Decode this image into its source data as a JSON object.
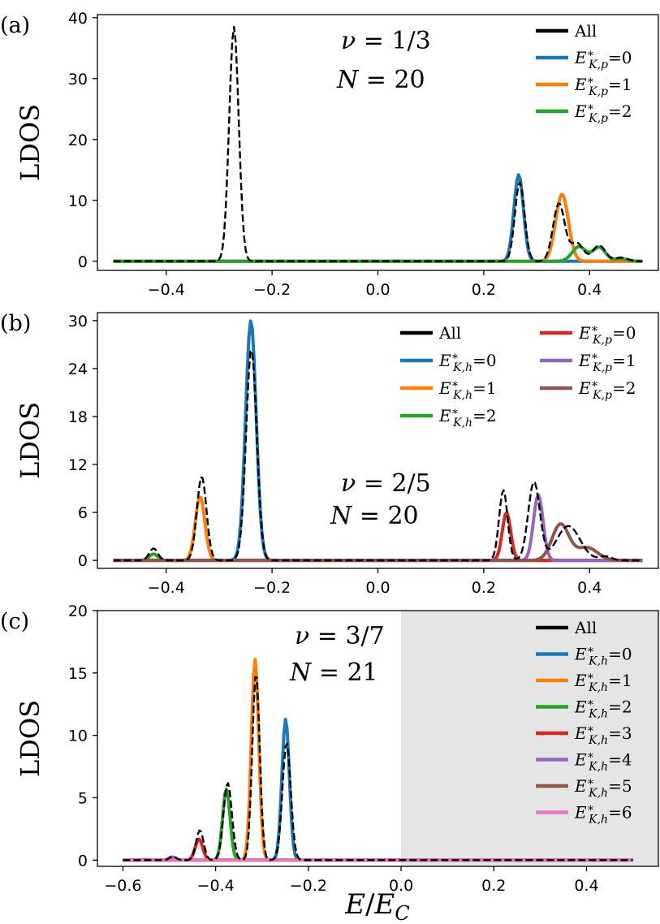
{
  "figure": {
    "xlabel": "E/E_C"
  },
  "chart_data": [
    {
      "type": "line",
      "panel_label": "(a)",
      "annotation": [
        "ν = 1/3",
        "N = 20"
      ],
      "xlabel": "",
      "ylabel": "LDOS",
      "xlim": [
        -0.53,
        0.53
      ],
      "ylim": [
        -1.5,
        40.5
      ],
      "xticks": [
        -0.4,
        -0.2,
        0.0,
        0.2,
        0.4
      ],
      "xtick_labels": [
        "−0.4",
        "−0.2",
        "0.0",
        "0.2",
        "0.4"
      ],
      "yticks": [
        0,
        10,
        20,
        30,
        40
      ],
      "ytick_labels": [
        "0",
        "10",
        "20",
        "30",
        "40"
      ],
      "legend_position": "top-right",
      "x_range": [
        -0.5,
        0.5
      ],
      "series": [
        {
          "name": "All",
          "color": "#000000",
          "style": "dashed",
          "peaks": [
            [
              -0.272,
              38.5,
              0.009
            ],
            [
              0.268,
              13.0,
              0.009
            ],
            [
              0.342,
              9.5,
              0.011
            ],
            [
              0.376,
              3.0,
              0.012
            ],
            [
              0.418,
              2.6,
              0.012
            ],
            [
              0.46,
              0.6,
              0.012
            ]
          ]
        },
        {
          "name": "E*K,p=0",
          "color": "#1f77b4",
          "style": "solid",
          "peaks": [
            [
              0.266,
              14.2,
              0.009
            ]
          ]
        },
        {
          "name": "E*K,p=1",
          "color": "#ff7f0e",
          "style": "solid",
          "peaks": [
            [
              0.348,
              11.0,
              0.012
            ]
          ]
        },
        {
          "name": "E*K,p=2",
          "color": "#2ca02c",
          "style": "solid",
          "peaks": [
            [
              0.38,
              2.4,
              0.013
            ],
            [
              0.418,
              2.3,
              0.012
            ],
            [
              0.46,
              0.4,
              0.012
            ]
          ]
        }
      ]
    },
    {
      "type": "line",
      "panel_label": "(b)",
      "annotation": [
        "ν = 2/5",
        "N = 20"
      ],
      "xlabel": "",
      "ylabel": "LDOS",
      "xlim": [
        -0.53,
        0.53
      ],
      "ylim": [
        -1.0,
        31.0
      ],
      "xticks": [
        -0.4,
        -0.2,
        0.0,
        0.2,
        0.4
      ],
      "xtick_labels": [
        "−0.4",
        "−0.2",
        "0.0",
        "0.2",
        "0.4"
      ],
      "yticks": [
        0,
        6,
        12,
        18,
        24,
        30
      ],
      "ytick_labels": [
        "0",
        "6",
        "12",
        "18",
        "24",
        "30"
      ],
      "legend_position": "top-right",
      "x_range": [
        -0.5,
        0.5
      ],
      "series": [
        {
          "name": "All",
          "color": "#000000",
          "style": "dashed",
          "peaks": [
            [
              -0.424,
              1.5,
              0.008
            ],
            [
              -0.333,
              10.5,
              0.009
            ],
            [
              -0.239,
              26.5,
              0.01
            ],
            [
              0.237,
              8.8,
              0.008
            ],
            [
              0.295,
              9.8,
              0.011
            ],
            [
              0.36,
              4.3,
              0.022
            ],
            [
              0.43,
              0.5,
              0.012
            ]
          ]
        },
        {
          "name": "E*K,h=0",
          "color": "#1f77b4",
          "style": "solid",
          "peaks": [
            [
              -0.24,
              30.0,
              0.01
            ]
          ]
        },
        {
          "name": "E*K,h=1",
          "color": "#ff7f0e",
          "style": "solid",
          "peaks": [
            [
              -0.336,
              8.0,
              0.009
            ]
          ]
        },
        {
          "name": "E*K,h=2",
          "color": "#2ca02c",
          "style": "solid",
          "peaks": [
            [
              -0.424,
              0.8,
              0.008
            ]
          ]
        },
        {
          "name": "E*K,p=0",
          "color": "#d62728",
          "style": "solid",
          "peaks": [
            [
              0.243,
              6.0,
              0.008
            ]
          ]
        },
        {
          "name": "E*K,p=1",
          "color": "#9467bd",
          "style": "solid",
          "peaks": [
            [
              0.303,
              8.2,
              0.009
            ]
          ]
        },
        {
          "name": "E*K,p=2",
          "color": "#8c564b",
          "style": "solid",
          "peaks": [
            [
              0.345,
              4.5,
              0.016
            ],
            [
              0.395,
              1.6,
              0.02
            ]
          ]
        }
      ]
    },
    {
      "type": "line",
      "panel_label": "(c)",
      "annotation": [
        "ν = 3/7",
        "N = 21"
      ],
      "xlabel": "E/E_C",
      "ylabel": "LDOS",
      "xlim": [
        -0.655,
        0.555
      ],
      "ylim": [
        -0.5,
        20.0
      ],
      "xticks": [
        -0.6,
        -0.4,
        -0.2,
        0.0,
        0.2,
        0.4
      ],
      "xtick_labels": [
        "−0.6",
        "−0.4",
        "−0.2",
        "0.0",
        "0.2",
        "0.4"
      ],
      "yticks": [
        0,
        5,
        10,
        15,
        20
      ],
      "ytick_labels": [
        "0",
        "5",
        "10",
        "15",
        "20"
      ],
      "legend_position": "top-right",
      "shaded_region": [
        0.0,
        0.555
      ],
      "shade_color": "#e5e5e5",
      "x_range": [
        -0.6,
        0.5
      ],
      "series": [
        {
          "name": "All",
          "color": "#000000",
          "style": "dashed",
          "peaks": [
            [
              -0.492,
              0.3,
              0.007
            ],
            [
              -0.434,
              2.4,
              0.008
            ],
            [
              -0.374,
              6.2,
              0.009
            ],
            [
              -0.313,
              15.0,
              0.008
            ],
            [
              -0.247,
              9.4,
              0.009
            ]
          ]
        },
        {
          "name": "E*K,h=0",
          "color": "#1f77b4",
          "style": "solid",
          "peaks": [
            [
              -0.249,
              11.3,
              0.008
            ]
          ]
        },
        {
          "name": "E*K,h=1",
          "color": "#ff7f0e",
          "style": "solid",
          "peaks": [
            [
              -0.315,
              16.1,
              0.008
            ]
          ]
        },
        {
          "name": "E*K,h=2",
          "color": "#2ca02c",
          "style": "solid",
          "peaks": [
            [
              -0.377,
              5.7,
              0.008
            ]
          ]
        },
        {
          "name": "E*K,h=3",
          "color": "#d62728",
          "style": "solid",
          "peaks": [
            [
              -0.436,
              1.7,
              0.008
            ]
          ]
        },
        {
          "name": "E*K,h=4",
          "color": "#9467bd",
          "style": "solid",
          "peaks": [
            [
              -0.494,
              0.25,
              0.007
            ]
          ]
        },
        {
          "name": "E*K,h=5",
          "color": "#8c564b",
          "style": "solid",
          "peaks": [
            [
              -0.55,
              0.05,
              0.007
            ]
          ]
        },
        {
          "name": "E*K,h=6",
          "color": "#e377c2",
          "style": "solid",
          "peaks": [
            [
              -0.6,
              0.02,
              0.007
            ]
          ]
        }
      ]
    }
  ]
}
